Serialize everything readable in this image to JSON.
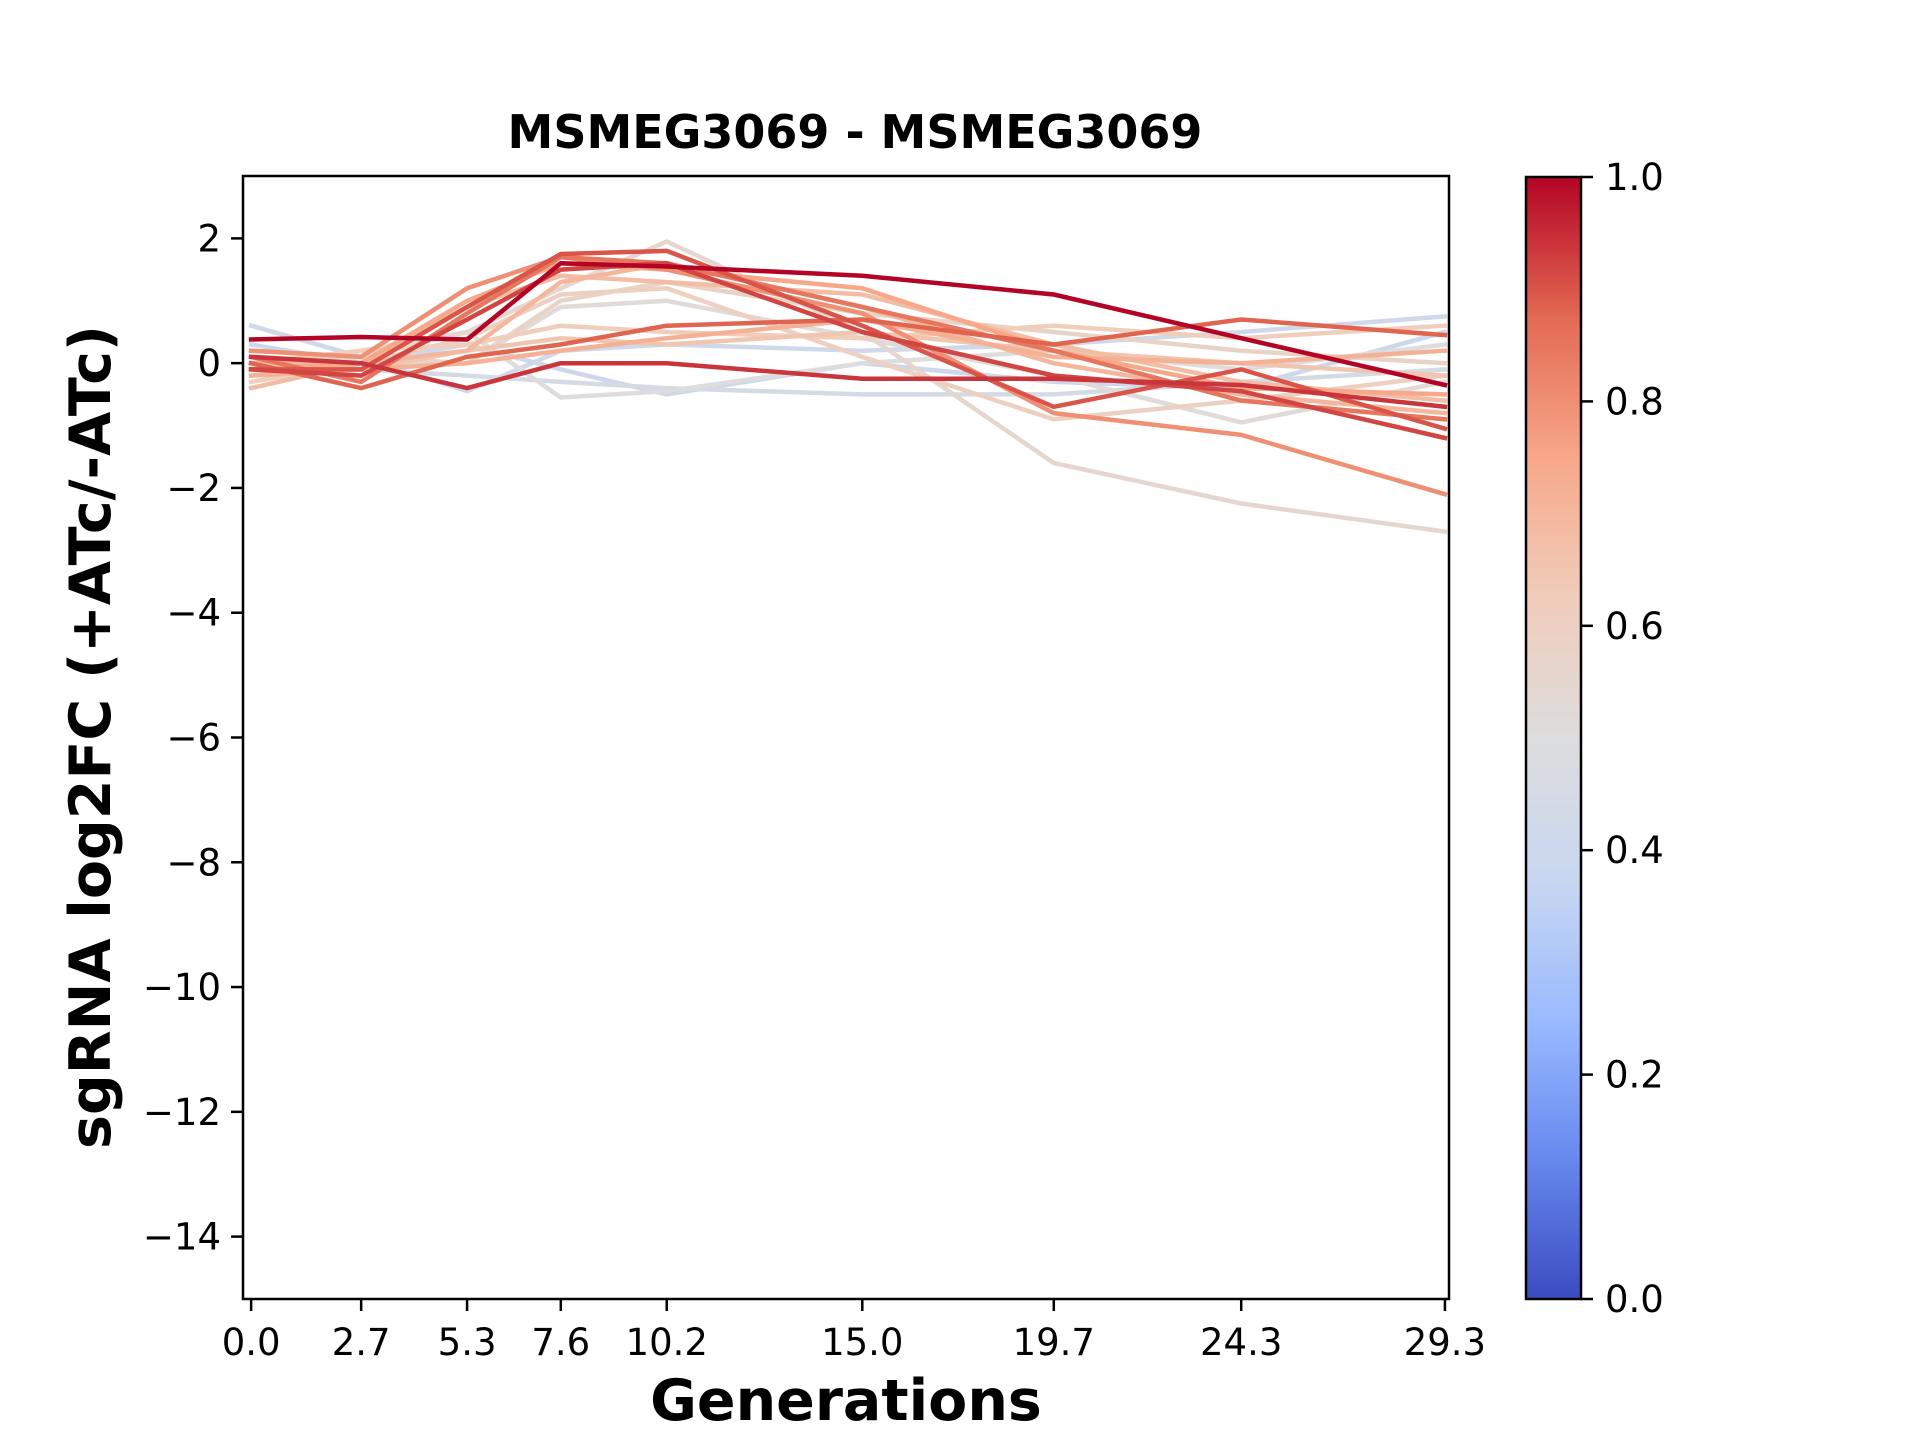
{
  "chart_data": {
    "type": "line",
    "title": "MSMEG3069 - MSMEG3069",
    "xlabel": "Generations",
    "ylabel": "sgRNA log2FC (+ATc/-ATc)",
    "x": [
      0.0,
      2.7,
      5.3,
      7.6,
      10.2,
      15.0,
      19.7,
      24.3,
      29.3
    ],
    "x_tick_labels": [
      "0.0",
      "2.7",
      "5.3",
      "7.6",
      "10.2",
      "15.0",
      "19.7",
      "24.3",
      "29.3"
    ],
    "xlim": [
      -0.2,
      29.4
    ],
    "ylim": [
      -15,
      3
    ],
    "y_ticks": [
      2,
      0,
      -2,
      -4,
      -6,
      -8,
      -10,
      -12,
      -14
    ],
    "y_tick_labels": [
      "2",
      "0",
      "−2",
      "−4",
      "−6",
      "−8",
      "−10",
      "−12",
      "−14"
    ],
    "grid": false,
    "colormap": "coolwarm",
    "colorbar": {
      "ticks": [
        1.0,
        0.8,
        0.6,
        0.4,
        0.2,
        0.0
      ],
      "tick_labels": [
        "1.0",
        "0.8",
        "0.6",
        "0.4",
        "0.2",
        "0.0"
      ],
      "range": [
        0,
        1
      ],
      "stops": [
        "#3b4cc0",
        "#6788ee",
        "#9abbff",
        "#c9d7f0",
        "#dddddd",
        "#f0cdbb",
        "#f7a889",
        "#e26952",
        "#b40426"
      ]
    },
    "series": [
      {
        "color_value": 0.42,
        "values": [
          0.6,
          0.1,
          -0.45,
          0.2,
          0.3,
          0.2,
          0.3,
          0.5,
          0.75
        ]
      },
      {
        "color_value": 0.4,
        "values": [
          0.3,
          0.0,
          0.3,
          -0.1,
          -0.5,
          0.0,
          -0.3,
          -0.4,
          0.5
        ]
      },
      {
        "color_value": 0.45,
        "values": [
          -0.2,
          -0.1,
          -0.2,
          -0.3,
          -0.4,
          -0.5,
          -0.5,
          -0.3,
          -0.1
        ]
      },
      {
        "color_value": 0.5,
        "values": [
          -0.1,
          0.2,
          0.5,
          -0.55,
          -0.45,
          0.0,
          0.2,
          -0.1,
          0.3
        ]
      },
      {
        "color_value": 0.52,
        "values": [
          0.1,
          0.0,
          0.0,
          0.9,
          1.0,
          0.4,
          -0.2,
          -0.95,
          -0.3
        ]
      },
      {
        "color_value": 0.55,
        "values": [
          0.0,
          0.1,
          0.5,
          1.2,
          1.95,
          0.5,
          -1.6,
          -2.25,
          -2.7
        ]
      },
      {
        "color_value": 0.58,
        "values": [
          0.2,
          0.1,
          0.0,
          1.0,
          1.3,
          0.8,
          0.5,
          0.2,
          0.0
        ]
      },
      {
        "color_value": 0.6,
        "values": [
          -0.3,
          0.0,
          0.4,
          1.1,
          1.2,
          0.1,
          -0.9,
          -0.6,
          -0.2
        ]
      },
      {
        "color_value": 0.62,
        "values": [
          0.0,
          0.2,
          0.3,
          0.6,
          0.5,
          0.4,
          0.6,
          0.4,
          0.6
        ]
      },
      {
        "color_value": 0.65,
        "values": [
          0.1,
          -0.1,
          0.2,
          0.4,
          0.3,
          0.5,
          0.2,
          0.0,
          -0.2
        ]
      },
      {
        "color_value": 0.68,
        "values": [
          -0.4,
          0.0,
          0.9,
          1.4,
          1.3,
          1.1,
          0.3,
          -0.3,
          -0.6
        ]
      },
      {
        "color_value": 0.7,
        "values": [
          0.0,
          0.0,
          0.2,
          1.3,
          1.6,
          0.9,
          0.0,
          -0.5,
          -0.8
        ]
      },
      {
        "color_value": 0.72,
        "values": [
          -0.2,
          -0.1,
          0.0,
          0.2,
          0.4,
          0.7,
          0.1,
          0.0,
          0.2
        ]
      },
      {
        "color_value": 0.75,
        "values": [
          -0.1,
          0.0,
          1.0,
          1.6,
          1.5,
          1.2,
          0.2,
          -0.4,
          -0.5
        ]
      },
      {
        "color_value": 0.8,
        "values": [
          0.2,
          0.1,
          1.2,
          1.7,
          1.5,
          0.8,
          -0.8,
          -1.15,
          -2.1
        ]
      },
      {
        "color_value": 0.85,
        "values": [
          0.1,
          -0.3,
          0.8,
          1.7,
          1.6,
          0.9,
          0.2,
          -0.6,
          -0.9
        ]
      },
      {
        "color_value": 0.88,
        "values": [
          0.0,
          -0.4,
          0.1,
          0.3,
          0.6,
          0.7,
          0.3,
          0.7,
          0.45
        ]
      },
      {
        "color_value": 0.9,
        "values": [
          -0.1,
          -0.1,
          0.9,
          1.75,
          1.8,
          0.6,
          -0.7,
          -0.1,
          -1.05
        ]
      },
      {
        "color_value": 0.92,
        "values": [
          -0.1,
          -0.2,
          0.7,
          1.5,
          1.6,
          0.5,
          -0.2,
          -0.45,
          -1.2
        ]
      },
      {
        "color_value": 0.94,
        "values": [
          0.1,
          0.0,
          -0.4,
          0.0,
          0.0,
          -0.25,
          -0.25,
          -0.35,
          -0.7
        ]
      },
      {
        "color_value": 1.0,
        "values": [
          0.38,
          0.42,
          0.38,
          1.6,
          1.55,
          1.4,
          1.1,
          0.4,
          -0.35
        ]
      }
    ]
  }
}
